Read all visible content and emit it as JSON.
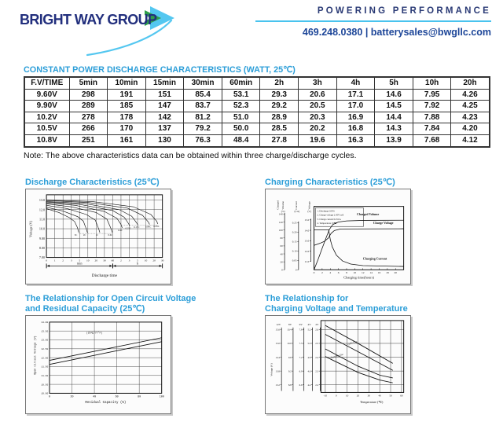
{
  "header": {
    "logo_text": "BRIGHT WAY GROUP",
    "tagline": "POWERING PERFORMANCE",
    "contact": "469.248.0380 | batterysales@bwgllc.com",
    "colors": {
      "navy": "#222f7d",
      "title_blue": "#2c9ed8",
      "rule_cyan": "#49c3ee",
      "arrow_blue": "#54c7f0",
      "arrow_green": "#2e9e49"
    }
  },
  "table": {
    "title": "CONSTANT POWER DISCHARGE CHARACTERISTICS (WATT, 25℃)",
    "columns": [
      "F.V/TIME",
      "5min",
      "10min",
      "15min",
      "30min",
      "60min",
      "2h",
      "3h",
      "4h",
      "5h",
      "10h",
      "20h"
    ],
    "rows": [
      [
        "9.60V",
        "298",
        "191",
        "151",
        "85.4",
        "53.1",
        "29.3",
        "20.6",
        "17.1",
        "14.6",
        "7.95",
        "4.26"
      ],
      [
        "9.90V",
        "289",
        "185",
        "147",
        "83.7",
        "52.3",
        "29.2",
        "20.5",
        "17.0",
        "14.5",
        "7.92",
        "4.25"
      ],
      [
        "10.2V",
        "278",
        "178",
        "142",
        "81.2",
        "51.0",
        "28.9",
        "20.3",
        "16.9",
        "14.4",
        "7.88",
        "4.23"
      ],
      [
        "10.5V",
        "266",
        "170",
        "137",
        "79.2",
        "50.0",
        "28.5",
        "20.2",
        "16.8",
        "14.3",
        "7.84",
        "4.20"
      ],
      [
        "10.8V",
        "251",
        "161",
        "130",
        "76.3",
        "48.4",
        "27.8",
        "19.6",
        "16.3",
        "13.9",
        "7.68",
        "4.12"
      ]
    ],
    "note": "Note: The above characteristics data can be obtained within three charge/discharge cycles."
  },
  "chart_data": [
    {
      "id": "discharge",
      "type": "line",
      "title": "Discharge Characteristics (25℃)",
      "ylabel": "Voltage (V)",
      "xlabel": "Discharge time",
      "ylim": [
        7.0,
        13.55
      ],
      "yticks": [
        {
          "v": 13.0,
          "t": "13.0"
        },
        {
          "v": 12.0,
          "t": "12.0"
        },
        {
          "v": 11.0,
          "t": "11.0"
        },
        {
          "v": 10.0,
          "t": "10.0"
        },
        {
          "v": 9.0,
          "t": "9.00"
        },
        {
          "v": 8.0,
          "t": "8.00"
        },
        {
          "v": 7.0,
          "t": "7.00"
        }
      ],
      "xticks": [
        "0",
        "1",
        "2",
        "3",
        "5",
        "10",
        "20",
        "30",
        "60",
        "2",
        "3",
        "5",
        "10",
        "20",
        "30"
      ],
      "x_sections": [
        "min",
        "h"
      ],
      "series": [
        {
          "label": "3C",
          "pts": [
            [
              0,
              12.1
            ],
            [
              1.5,
              11.7
            ],
            [
              2.8,
              11.15
            ],
            [
              3.4,
              10.75
            ],
            [
              3.75,
              10.1
            ],
            [
              3.9,
              9.6
            ]
          ]
        },
        {
          "label": "2C",
          "pts": [
            [
              0,
              12.25
            ],
            [
              2,
              11.85
            ],
            [
              3.8,
              11.25
            ],
            [
              4.45,
              10.8
            ],
            [
              4.8,
              10.0
            ],
            [
              4.95,
              9.6
            ]
          ]
        },
        {
          "label": "1C",
          "pts": [
            [
              0,
              12.45
            ],
            [
              2.5,
              12.1
            ],
            [
              4.8,
              11.5
            ],
            [
              5.9,
              10.9
            ],
            [
              6.3,
              10.0
            ],
            [
              6.45,
              9.6
            ]
          ]
        },
        {
          "label": "0.6C",
          "pts": [
            [
              0,
              12.6
            ],
            [
              3,
              12.3
            ],
            [
              6,
              11.7
            ],
            [
              7.3,
              11.0
            ],
            [
              7.8,
              10.0
            ],
            [
              7.95,
              9.6
            ]
          ]
        },
        {
          "label": "0.4C",
          "pts": [
            [
              0,
              12.7
            ],
            [
              3.5,
              12.45
            ],
            [
              7,
              11.8
            ],
            [
              8.5,
              11.1
            ],
            [
              9.0,
              10.45
            ],
            [
              9.15,
              10.1
            ]
          ]
        },
        {
          "label": "0.25C",
          "pts": [
            [
              0,
              12.8
            ],
            [
              4,
              12.55
            ],
            [
              8,
              11.9
            ],
            [
              9.4,
              11.2
            ],
            [
              9.9,
              10.55
            ],
            [
              10.05,
              10.3
            ]
          ]
        },
        {
          "label": "0.17C",
          "pts": [
            [
              0,
              12.85
            ],
            [
              4.5,
              12.65
            ],
            [
              8.8,
              12.0
            ],
            [
              10.3,
              11.3
            ],
            [
              10.9,
              10.6
            ],
            [
              11.05,
              10.4
            ]
          ]
        },
        {
          "label": "0.09C",
          "pts": [
            [
              0,
              12.95
            ],
            [
              5,
              12.75
            ],
            [
              9.8,
              12.15
            ],
            [
              11.6,
              11.4
            ],
            [
              12.3,
              10.7
            ],
            [
              12.45,
              10.45
            ]
          ]
        },
        {
          "label": "0.05C",
          "pts": [
            [
              0,
              13.0
            ],
            [
              5.5,
              12.85
            ],
            [
              10.5,
              12.3
            ],
            [
              12.6,
              11.5
            ],
            [
              13.3,
              10.8
            ],
            [
              13.45,
              10.5
            ]
          ]
        }
      ]
    },
    {
      "id": "charging",
      "type": "line",
      "title": "Charging Characteristics (25℃)",
      "xlabel": "Charging time(hours)",
      "xticks": [
        "0",
        "2",
        "4",
        "6",
        "8",
        "10",
        "12",
        "14",
        "16",
        "18",
        "20"
      ],
      "xlim": [
        0,
        22
      ],
      "vlim": [
        10.2,
        16.3
      ],
      "axes": [
        {
          "name": "Charged Volume",
          "unit": "(%)",
          "ticks": [
            "140",
            "120",
            "100",
            "80",
            "60",
            "40",
            "20",
            "0"
          ]
        },
        {
          "name": "Current",
          "unit": "(CA)",
          "ticks": [
            "0.25",
            "0.20",
            "0.15",
            "0.10",
            "0.05",
            "0"
          ]
        },
        {
          "name": "Voltage",
          "unit": "(V)",
          "ticks": [
            "15.0",
            "14.0",
            "13.0",
            "12.0",
            "11.0"
          ]
        }
      ],
      "legend": [
        "1. Discharge 100%",
        "2. Charge voltage 2.45V/cell",
        "3. Charge current 0.25CA",
        "4. Temperature 25℃"
      ],
      "series": [
        {
          "label": "Charged Volume",
          "label_pos": [
            10.5,
            15.45
          ],
          "pts": [
            [
              0,
              10.2
            ],
            [
              1,
              11.2
            ],
            [
              2,
              12.25
            ],
            [
              3,
              13.3
            ],
            [
              3.8,
              14.1
            ],
            [
              4.6,
              14.55
            ],
            [
              6,
              14.8
            ],
            [
              8,
              14.9
            ],
            [
              12,
              14.95
            ],
            [
              22,
              14.97
            ]
          ]
        },
        {
          "label": "Charge Voltage",
          "label_pos": [
            14.5,
            14.62
          ],
          "pts": [
            [
              0,
              12.55
            ],
            [
              1.5,
              12.75
            ],
            [
              2.5,
              12.92
            ],
            [
              3.5,
              13.25
            ],
            [
              4.2,
              13.7
            ],
            [
              5,
              13.98
            ],
            [
              6.5,
              14.13
            ],
            [
              22,
              14.15
            ]
          ]
        },
        {
          "label": "Charging Current",
          "label_pos": [
            12,
            11.15
          ],
          "pts": [
            [
              0,
              14.05
            ],
            [
              3.6,
              14.05
            ],
            [
              4.0,
              13.1
            ],
            [
              4.5,
              12.4
            ],
            [
              5.5,
              11.6
            ],
            [
              7,
              11.05
            ],
            [
              9,
              10.75
            ],
            [
              12,
              10.6
            ],
            [
              22,
              10.52
            ]
          ]
        }
      ]
    },
    {
      "id": "ocv",
      "type": "line",
      "title_lines": [
        "The Relationship for Open Circuit Voltage",
        "and Residual Capacity (25℃)"
      ],
      "ylabel": "Open Circuit Voltage (V)",
      "xlabel": "Residual Capacity (%)",
      "ylim": [
        10.0,
        14.0
      ],
      "xlim": [
        0,
        100
      ],
      "yticks": [
        "14.00",
        "13.50",
        "13.00",
        "12.50",
        "12.00",
        "11.50",
        "11.00",
        "10.50",
        "10.00"
      ],
      "xticks": [
        "0",
        "20",
        "40",
        "60",
        "80",
        "100"
      ],
      "annotation": "(25℃/77°F)",
      "annotation_pos": [
        40,
        13.35
      ],
      "series": [
        {
          "pts": [
            [
              0,
              11.85
            ],
            [
              100,
              13.12
            ]
          ]
        },
        {
          "pts": [
            [
              0,
              11.62
            ],
            [
              100,
              12.9
            ]
          ]
        }
      ]
    },
    {
      "id": "cvt",
      "type": "line",
      "title_lines": [
        "The Relationship for",
        "Charging Voltage and Temperature"
      ],
      "ylabel": "Voltage (V)",
      "xlabel": "Temperature (℃)",
      "scales": [
        {
          "header": "12V",
          "ticks": [
            "15.6",
            "15.0",
            "14.4",
            "13.8",
            "13.2"
          ]
        },
        {
          "header": "8V",
          "ticks": [
            "10.4",
            "10.0",
            "9.6",
            "9.2",
            "8.8"
          ]
        },
        {
          "header": "6V",
          "ticks": [
            "7.8",
            "7.5",
            "7.2",
            "6.9",
            "6.6"
          ]
        },
        {
          "header": "4V",
          "ticks": [
            "5.2",
            "5.0",
            "4.8",
            "4.6",
            "4.4"
          ]
        },
        {
          "header": "2V",
          "ticks": [
            "2.6",
            "2.5",
            "2.4",
            "2.3",
            "2.2"
          ]
        }
      ],
      "xticks": [
        "-10",
        "0",
        "10",
        "20",
        "30",
        "40",
        "50",
        "60"
      ],
      "xlim": [
        -10,
        60
      ],
      "ylim": [
        2.145,
        2.665
      ],
      "gridlines_y": [
        2.6,
        2.5,
        2.4,
        2.3,
        2.2
      ],
      "bands": [
        {
          "label": "Cycle Use",
          "label_pos": [
            10,
            2.487
          ],
          "rot": -16,
          "upper": [
            [
              -10,
              2.63
            ],
            [
              20,
              2.5
            ],
            [
              52,
              2.355
            ]
          ],
          "lower": [
            [
              -10,
              2.565
            ],
            [
              20,
              2.44
            ],
            [
              52,
              2.305
            ]
          ]
        },
        {
          "label": "Standby Use",
          "label_pos": [
            -5,
            2.39
          ],
          "rot": -16,
          "upper": [
            [
              -10,
              2.46
            ],
            [
              20,
              2.335
            ],
            [
              40,
              2.27
            ],
            [
              52,
              2.25
            ]
          ],
          "lower": [
            [
              -10,
              2.405
            ],
            [
              20,
              2.29
            ],
            [
              40,
              2.235
            ],
            [
              52,
              2.215
            ]
          ]
        }
      ]
    }
  ]
}
